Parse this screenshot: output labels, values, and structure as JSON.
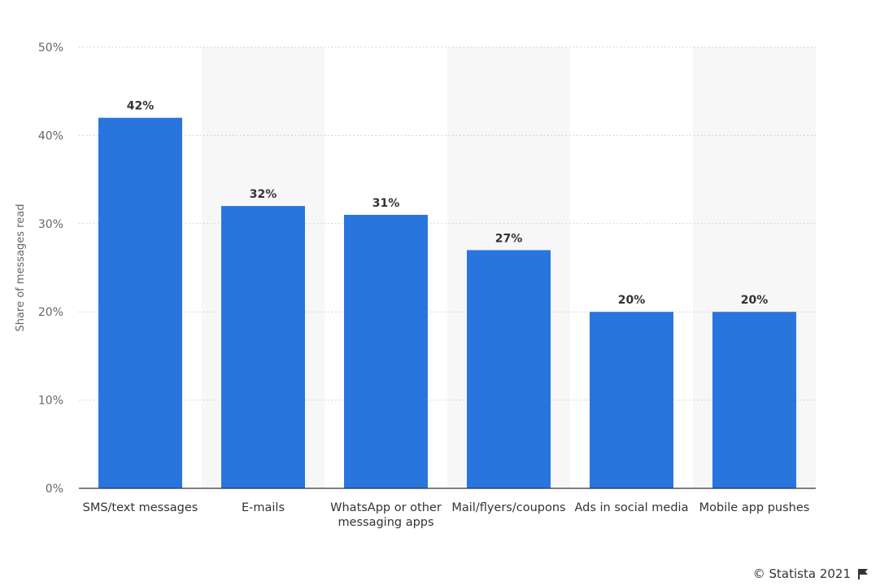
{
  "chart_data": {
    "type": "bar",
    "title": "",
    "xlabel": "",
    "ylabel": "Share of messages read",
    "categories": [
      [
        "SMS/text messages"
      ],
      [
        "E-mails"
      ],
      [
        "WhatsApp or other",
        "messaging apps"
      ],
      [
        "Mail/flyers/coupons"
      ],
      [
        "Ads in social media"
      ],
      [
        "Mobile app pushes"
      ]
    ],
    "values": [
      42,
      32,
      31,
      27,
      20,
      20
    ],
    "value_labels": [
      "42%",
      "32%",
      "31%",
      "27%",
      "20%",
      "20%"
    ],
    "y_ticks": [
      0,
      10,
      20,
      30,
      40,
      50
    ],
    "y_tick_labels": [
      "0%",
      "10%",
      "20%",
      "30%",
      "40%",
      "50%"
    ],
    "ylim": [
      0,
      50
    ],
    "grid": true,
    "bar_color": "#2876dd",
    "band_color": "#f7f7f7"
  },
  "footer": {
    "credit": "© Statista 2021",
    "flag_icon": "flag-icon"
  }
}
